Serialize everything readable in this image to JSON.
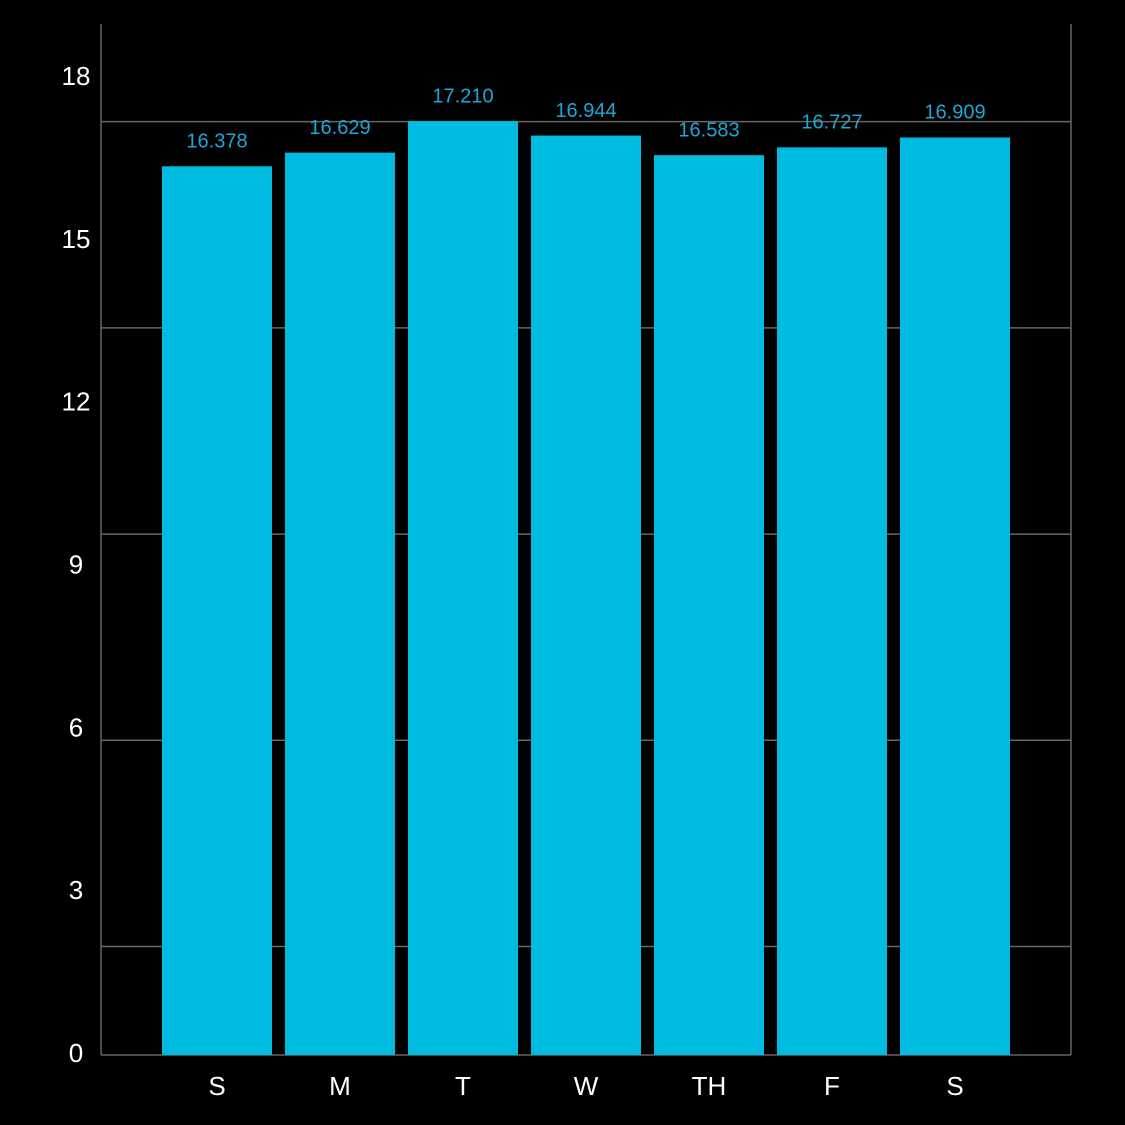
{
  "chart_data": {
    "type": "bar",
    "categories": [
      "S",
      "M",
      "T",
      "W",
      "TH",
      "F",
      "S"
    ],
    "values": [
      16.378,
      16.629,
      17.21,
      16.944,
      16.583,
      16.727,
      16.909
    ],
    "value_labels": [
      "16.378",
      "16.629",
      "17.210",
      "16.944",
      "16.583",
      "16.727",
      "16.909"
    ],
    "color": "#00bbe0",
    "label_color": "#1ea6d6",
    "ylim": [
      0,
      19
    ],
    "yticks": [
      0,
      3,
      6,
      9,
      12,
      15,
      18
    ],
    "gridlines": [
      2.0,
      5.8,
      9.6,
      13.4,
      17.2
    ],
    "grid": true
  }
}
